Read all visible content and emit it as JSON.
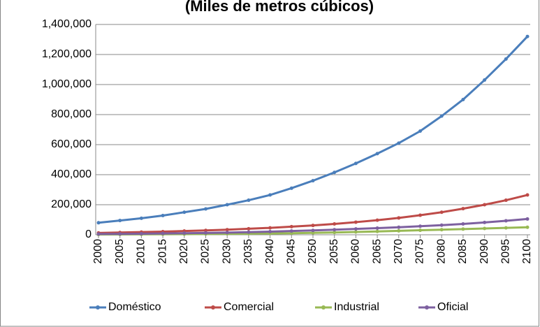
{
  "chart_data": {
    "type": "line",
    "title": "(Miles de metros cúbicos)",
    "x": [
      2000,
      2005,
      2010,
      2015,
      2020,
      2025,
      2030,
      2035,
      2040,
      2045,
      2050,
      2055,
      2060,
      2065,
      2070,
      2075,
      2080,
      2085,
      2090,
      2095,
      2100
    ],
    "series": [
      {
        "name": "Doméstico",
        "color": "#4a7ebb",
        "values": [
          80000,
          95000,
          110000,
          128000,
          150000,
          172000,
          200000,
          230000,
          265000,
          310000,
          360000,
          415000,
          475000,
          540000,
          610000,
          690000,
          790000,
          900000,
          1030000,
          1170000,
          1320000
        ]
      },
      {
        "name": "Comercial",
        "color": "#be4b48",
        "values": [
          12000,
          15000,
          18000,
          21000,
          25000,
          29000,
          34000,
          40000,
          46000,
          54000,
          62000,
          72000,
          84000,
          97000,
          112000,
          130000,
          150000,
          174000,
          200000,
          230000,
          265000
        ]
      },
      {
        "name": "Industrial",
        "color": "#98b954",
        "values": [
          2000,
          2500,
          3000,
          3600,
          4300,
          5200,
          6200,
          7400,
          8900,
          10700,
          12800,
          15400,
          18400,
          22000,
          26000,
          30000,
          34000,
          38000,
          42000,
          46000,
          50000
        ]
      },
      {
        "name": "Oficial",
        "color": "#7d60a0",
        "values": [
          5000,
          6000,
          7200,
          8600,
          10300,
          12300,
          14700,
          17500,
          21000,
          25000,
          29000,
          34000,
          39000,
          44000,
          50000,
          57000,
          64000,
          72000,
          82000,
          93000,
          105000
        ]
      }
    ],
    "xlim": [
      2000,
      2100
    ],
    "xticks": [
      2000,
      2005,
      2010,
      2015,
      2020,
      2025,
      2030,
      2035,
      2040,
      2045,
      2050,
      2055,
      2060,
      2065,
      2070,
      2075,
      2080,
      2085,
      2090,
      2095,
      2100
    ],
    "ylim": [
      0,
      1400000
    ],
    "yticks": [
      0,
      {
        "value": 200000,
        "label": "200,000"
      },
      {
        "value": 400000,
        "label": "400,000"
      },
      {
        "value": 600000,
        "label": "600,000"
      },
      {
        "value": 800000,
        "label": "800,000"
      },
      {
        "value": 1000000,
        "label": "1,000,000"
      },
      {
        "value": 1200000,
        "label": "1,200,000"
      },
      {
        "value": 1400000,
        "label": "1,400,000"
      }
    ],
    "grid": true,
    "legend": "bottom",
    "title_color": "#1f5aa6"
  }
}
